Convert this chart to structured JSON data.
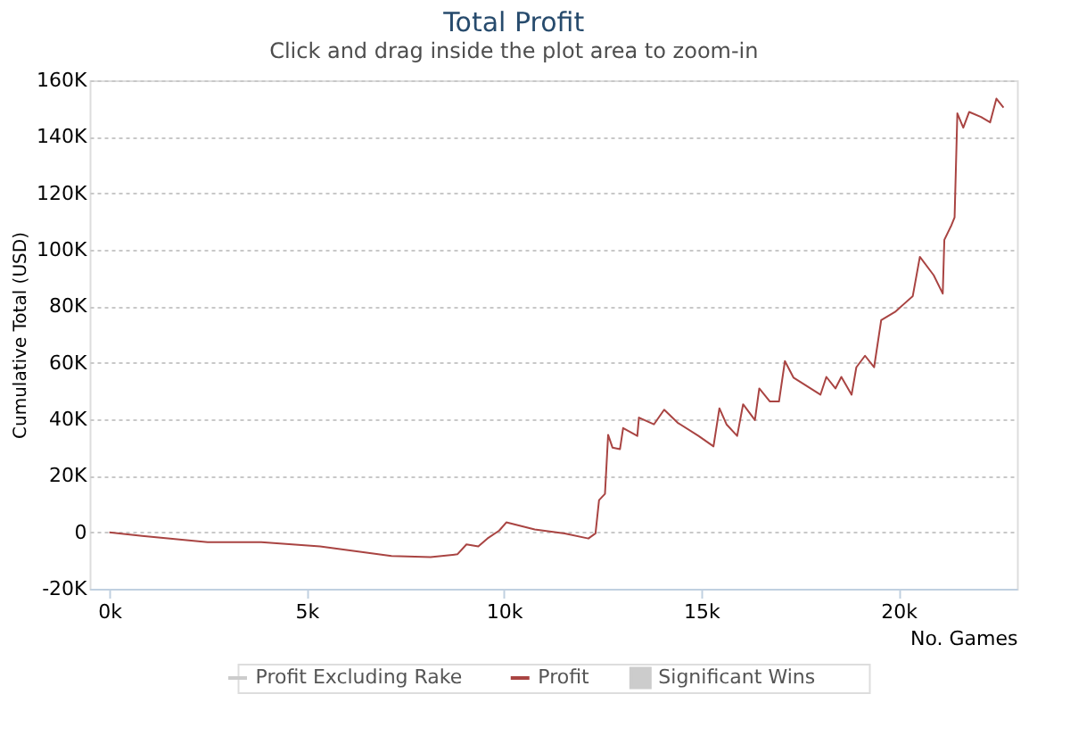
{
  "chart_data": {
    "type": "line",
    "title": "Total Profit",
    "subtitle": "Click and drag inside the plot area to zoom-in",
    "xlabel": "No. Games",
    "ylabel": "Cumulative Total (USD)",
    "xlim": [
      -500,
      23000
    ],
    "xticks": [
      {
        "value": 0,
        "label": "0k"
      },
      {
        "value": 5000,
        "label": "5k"
      },
      {
        "value": 10000,
        "label": "10k"
      },
      {
        "value": 15000,
        "label": "15k"
      },
      {
        "value": 20000,
        "label": "20k"
      }
    ],
    "ylim": [
      -20000,
      160000
    ],
    "yticks": [
      {
        "value": -20000,
        "label": "-20K"
      },
      {
        "value": 0,
        "label": "0"
      },
      {
        "value": 20000,
        "label": "20K"
      },
      {
        "value": 40000,
        "label": "40K"
      },
      {
        "value": 60000,
        "label": "60K"
      },
      {
        "value": 80000,
        "label": "80K"
      },
      {
        "value": 100000,
        "label": "100K"
      },
      {
        "value": 120000,
        "label": "120K"
      },
      {
        "value": 140000,
        "label": "140K"
      },
      {
        "value": 160000,
        "label": "160K"
      }
    ],
    "grid": "y",
    "legend": "bottom",
    "line_style": "solid",
    "marker": "none",
    "series": [
      {
        "name": "Profit Excluding Rake",
        "color": "#cccccc"
      },
      {
        "name": "Profit",
        "color": "#a94442",
        "x": [
          0,
          830,
          2490,
          3850,
          5340,
          7150,
          8140,
          8820,
          9050,
          9350,
          9580,
          9880,
          10060,
          10780,
          11540,
          12140,
          12320,
          12410,
          12560,
          12640,
          12750,
          12940,
          13020,
          13380,
          13420,
          13800,
          14060,
          14400,
          14930,
          15310,
          15460,
          15640,
          15910,
          16060,
          16360,
          16470,
          16740,
          16970,
          17120,
          17340,
          18020,
          18170,
          18400,
          18550,
          18810,
          18930,
          19150,
          19380,
          19560,
          19910,
          20360,
          20540,
          20890,
          21120,
          21160,
          21340,
          21420,
          21490,
          21640,
          21790,
          22090,
          22320,
          22480,
          22660
        ],
        "values": [
          0,
          -1300,
          -3500,
          -3500,
          -5000,
          -8400,
          -8800,
          -7800,
          -4300,
          -5000,
          -2200,
          600,
          3500,
          1000,
          -400,
          -2200,
          -400,
          11400,
          13600,
          34500,
          30000,
          29400,
          36900,
          34100,
          40600,
          38200,
          43400,
          38800,
          34100,
          30400,
          43900,
          38200,
          34100,
          45300,
          39700,
          50900,
          46300,
          46300,
          60600,
          54700,
          48700,
          55000,
          50900,
          55000,
          48700,
          58400,
          62500,
          58400,
          75100,
          78000,
          83600,
          97500,
          91000,
          84500,
          103500,
          108700,
          111500,
          148300,
          143200,
          148800,
          147000,
          145100,
          153500,
          150300
        ]
      },
      {
        "name": "Significant Wins",
        "type": "area",
        "color": "#cccccc"
      }
    ]
  }
}
